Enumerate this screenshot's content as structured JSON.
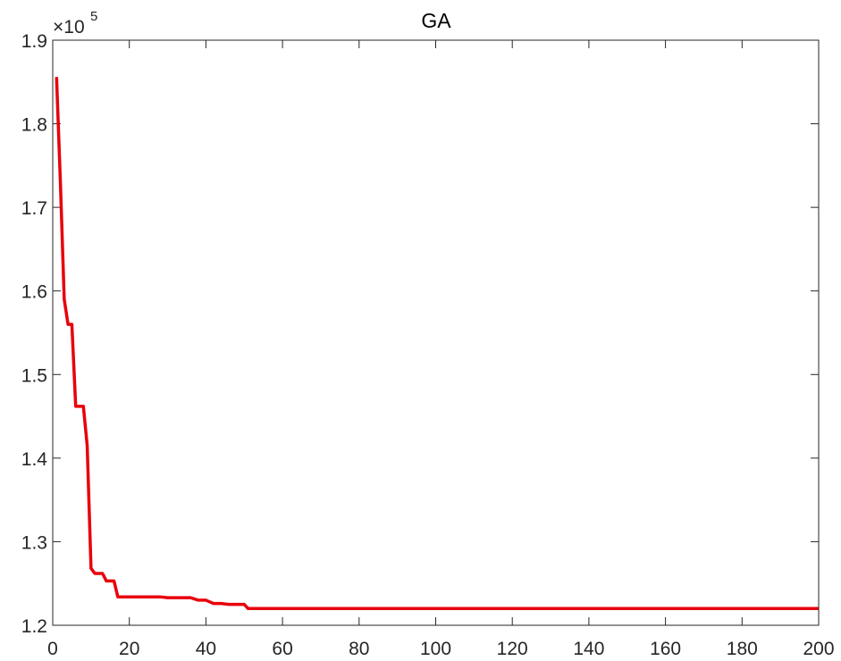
{
  "chart_data": {
    "type": "line",
    "title": "GA",
    "xlabel": "",
    "ylabel": "",
    "y_exponent_label": "×10",
    "y_exponent_power": "5",
    "xlim": [
      0,
      200
    ],
    "ylim": [
      1.2,
      1.9
    ],
    "x_ticks": [
      0,
      20,
      40,
      60,
      80,
      100,
      120,
      140,
      160,
      180,
      200
    ],
    "x_tick_labels": [
      "0",
      "20",
      "40",
      "60",
      "80",
      "100",
      "120",
      "140",
      "160",
      "180",
      "200"
    ],
    "y_ticks": [
      1.2,
      1.3,
      1.4,
      1.5,
      1.6,
      1.7,
      1.8,
      1.9
    ],
    "y_tick_labels": [
      "1.2",
      "1.3",
      "1.4",
      "1.5",
      "1.6",
      "1.7",
      "1.8",
      "1.9"
    ],
    "grid": false,
    "box": true,
    "series": [
      {
        "color": "#e8000b",
        "x": [
          1,
          2,
          3,
          4,
          5,
          6,
          7,
          8,
          9,
          10,
          11,
          12,
          13,
          14,
          15,
          16,
          17,
          18,
          19,
          20,
          22,
          24,
          26,
          28,
          30,
          32,
          34,
          36,
          38,
          40,
          42,
          44,
          46,
          48,
          50,
          51,
          60,
          80,
          100,
          120,
          140,
          160,
          180,
          200
        ],
        "y": [
          1.856,
          1.73,
          1.59,
          1.56,
          1.56,
          1.462,
          1.462,
          1.462,
          1.415,
          1.268,
          1.262,
          1.262,
          1.262,
          1.253,
          1.253,
          1.253,
          1.234,
          1.234,
          1.234,
          1.234,
          1.234,
          1.234,
          1.234,
          1.234,
          1.233,
          1.233,
          1.233,
          1.233,
          1.23,
          1.23,
          1.226,
          1.226,
          1.225,
          1.225,
          1.225,
          1.22,
          1.22,
          1.22,
          1.22,
          1.22,
          1.22,
          1.22,
          1.22,
          1.22
        ]
      }
    ]
  }
}
